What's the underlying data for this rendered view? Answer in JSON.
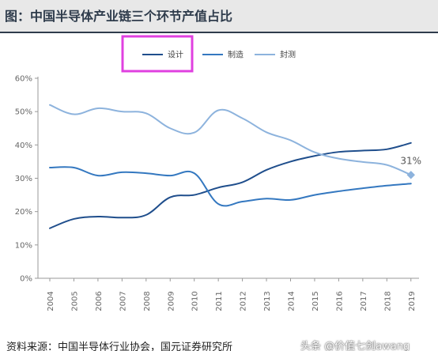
{
  "page": {
    "title": "图：中国半导体产业链三个环节产值占比",
    "source": "资料来源：中国半导体行业协会，国元证券研究所",
    "watermark": "头条 @价值七剑awang"
  },
  "colors": {
    "header_band": "#e8e8e8",
    "title_text": "#2f3c4c",
    "axis": "#999999",
    "highlight_box": "#e040e0"
  },
  "chart_data": {
    "type": "line",
    "title": "",
    "xlabel": "",
    "ylabel": "",
    "categories": [
      "2004",
      "2005",
      "2006",
      "2007",
      "2008",
      "2009",
      "2010",
      "2011",
      "2012",
      "2013",
      "2014",
      "2015",
      "2016",
      "2017",
      "2018",
      "2019"
    ],
    "ylim": [
      0,
      60
    ],
    "yticks": [
      0,
      10,
      20,
      30,
      40,
      50,
      60
    ],
    "ytick_labels": [
      "0%",
      "10%",
      "20%",
      "30%",
      "40%",
      "50%",
      "60%"
    ],
    "grid": false,
    "legend_position": "top-center",
    "series": [
      {
        "name": "设计",
        "color": "#1f4e8c",
        "values": [
          15,
          17.8,
          18.5,
          18.2,
          19,
          24.3,
          25,
          27.2,
          28.8,
          32.5,
          35,
          36.7,
          37.9,
          38.3,
          38.7,
          40.6
        ]
      },
      {
        "name": "制造",
        "color": "#3478c0",
        "values": [
          33.2,
          33.2,
          30.8,
          31.8,
          31.5,
          30.8,
          31.5,
          22.3,
          23,
          23.9,
          23.5,
          25,
          26.1,
          27,
          27.8,
          28.4
        ]
      },
      {
        "name": "封测",
        "color": "#8db3dd",
        "values": [
          52,
          49.2,
          51,
          50,
          49.5,
          45,
          43.7,
          50.4,
          48,
          43.8,
          41.4,
          37.8,
          35.9,
          34.9,
          34,
          31
        ]
      }
    ],
    "annotations": [
      {
        "series": "封测",
        "category": "2019",
        "text": "31%",
        "marker": "diamond"
      }
    ],
    "legend_highlight": {
      "target": "设计",
      "color": "#e040e0"
    }
  }
}
